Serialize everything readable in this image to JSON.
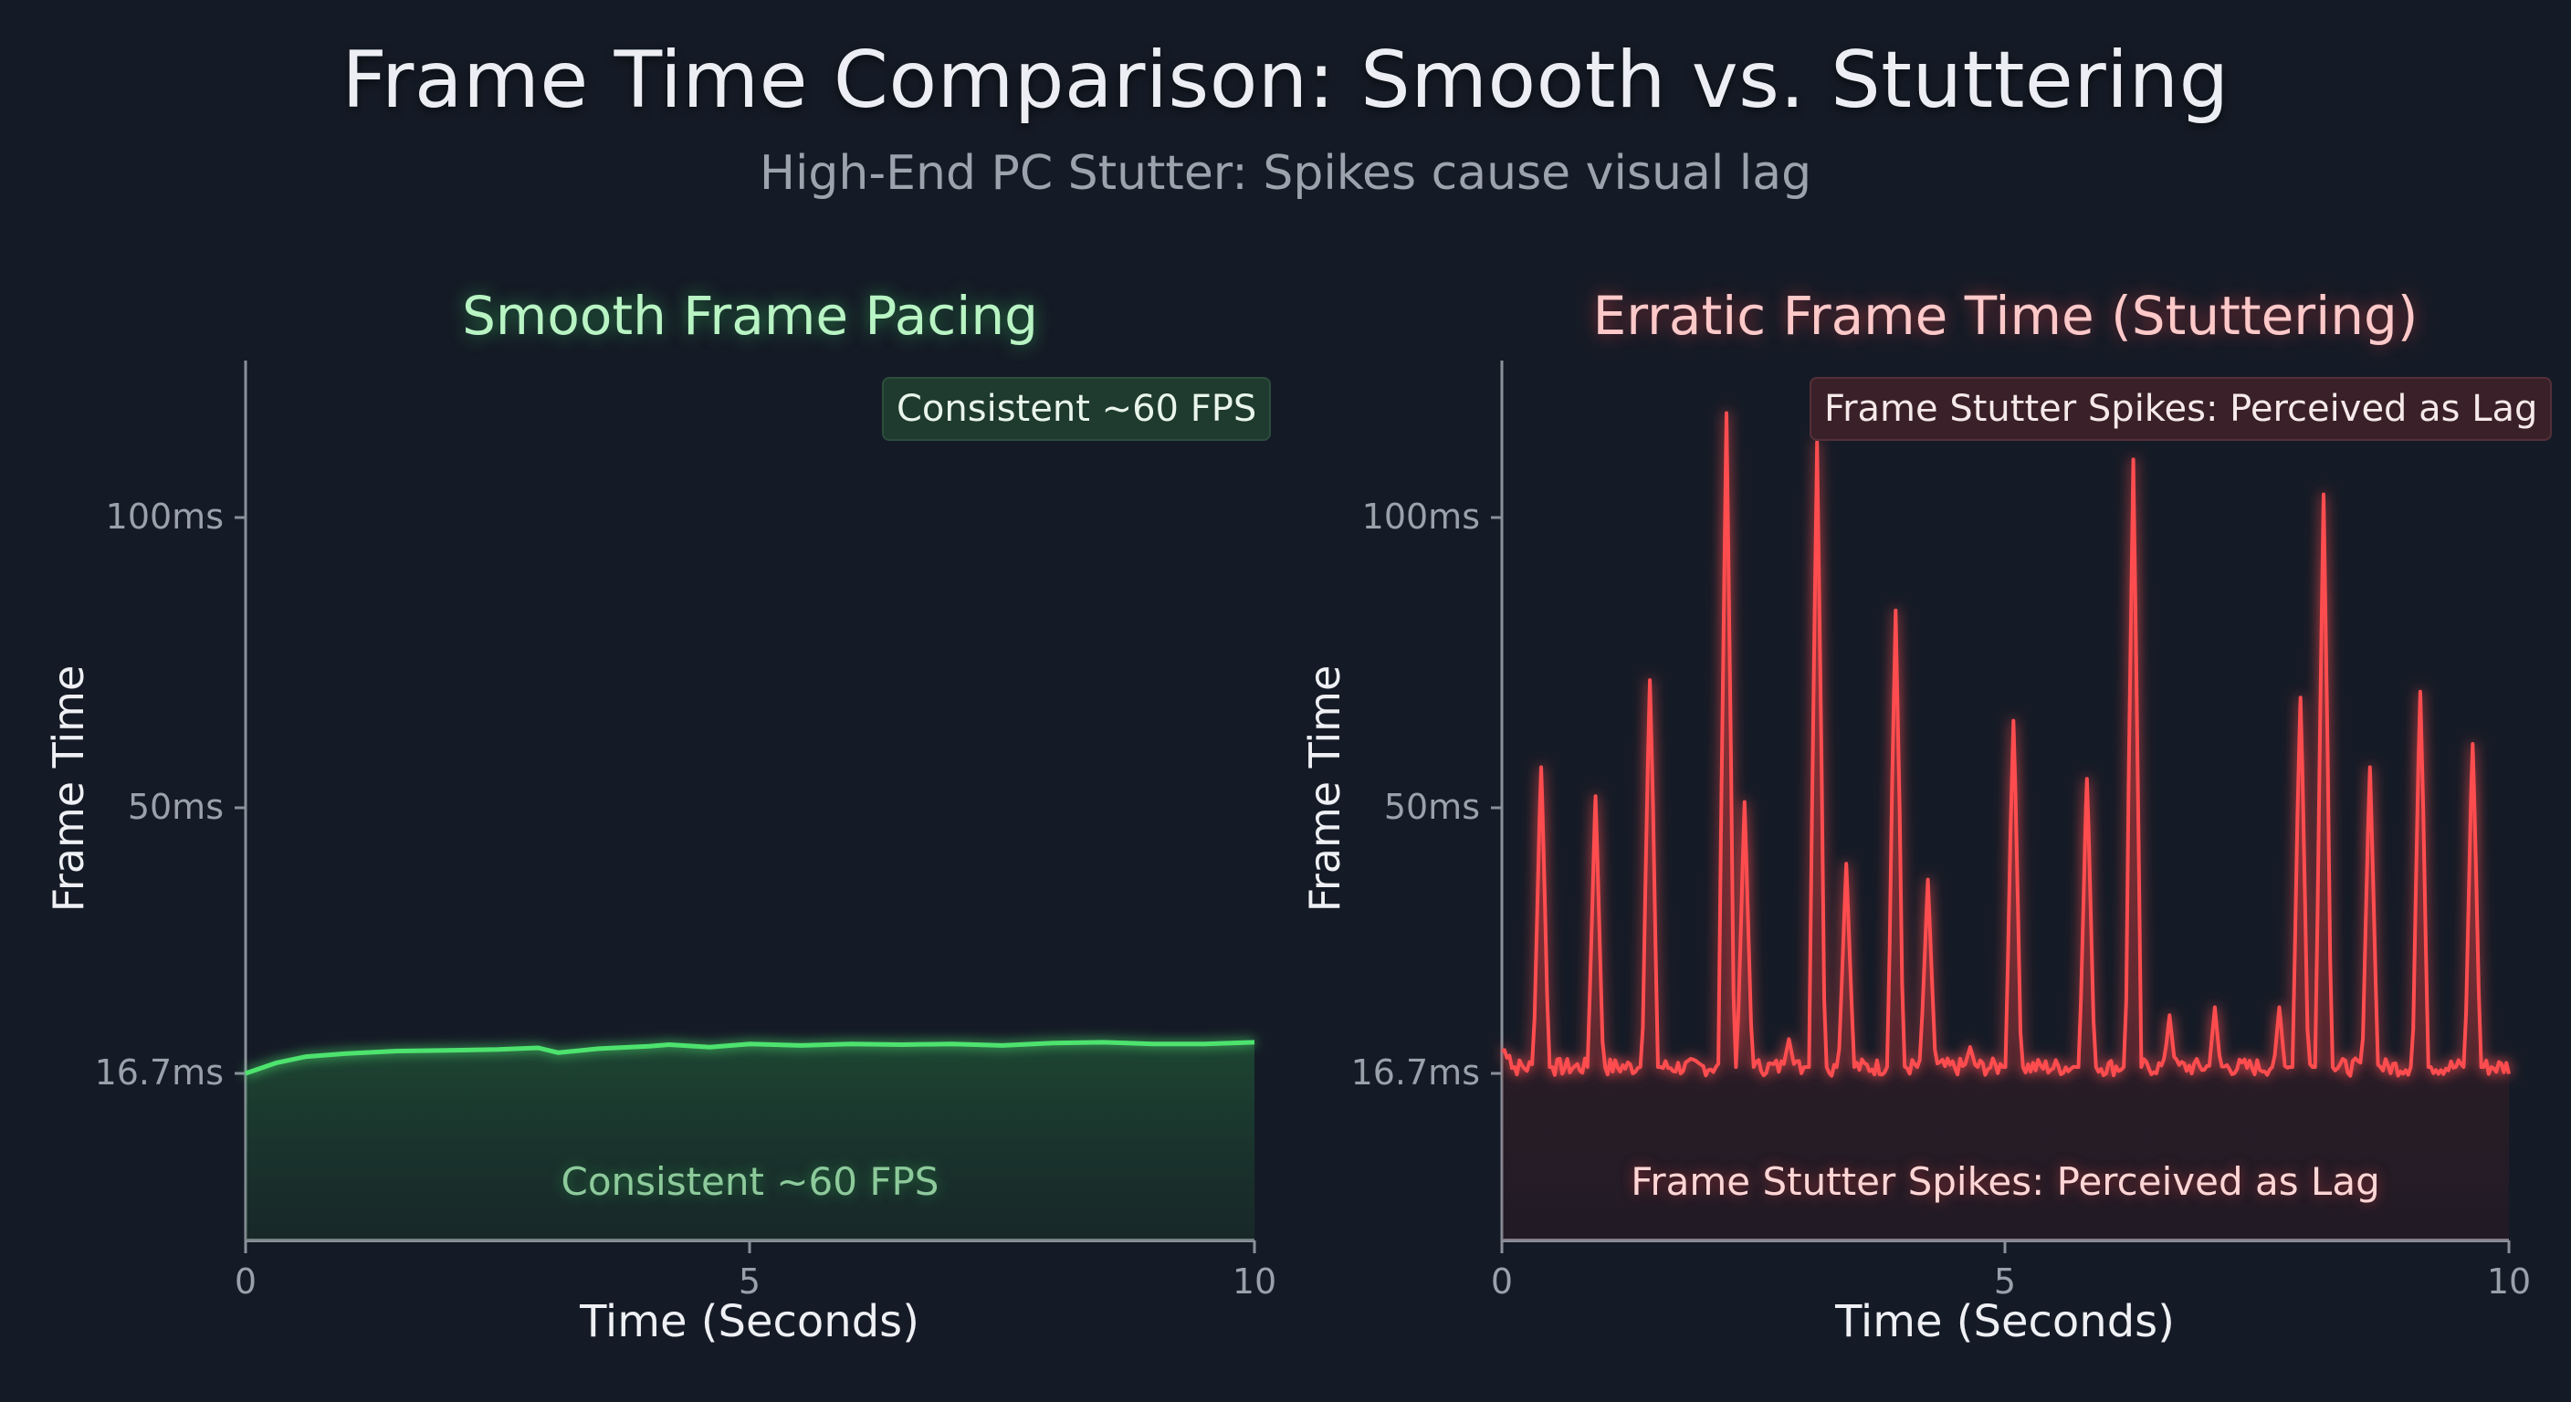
{
  "header": {
    "title": "Frame Time Comparison: Smooth vs. Stuttering",
    "subtitle": "High-End PC Stutter: Spikes cause visual lag"
  },
  "colors": {
    "background": "#151b26",
    "smooth_line": "#4ee36e",
    "stutter_line": "#ff4d4f",
    "axis": "#8b919b"
  },
  "chart_data": [
    {
      "type": "area",
      "title": "Smooth Frame Pacing",
      "xlabel": "Time (Seconds)",
      "ylabel": "Frame Time",
      "x_ticks": [
        0,
        5,
        10
      ],
      "y_ticks": [
        16.7,
        50,
        100
      ],
      "y_tick_labels": [
        "16.7ms",
        "50ms",
        "100ms"
      ],
      "xlim": [
        0,
        10
      ],
      "grid": false,
      "annotation_box": "Consistent ~60 FPS",
      "annotation_inner": "Consistent ~60 FPS",
      "series": [
        {
          "name": "Smooth",
          "color": "#4ee36e",
          "x": [
            0,
            0.3,
            0.6,
            1.0,
            1.5,
            2.0,
            2.5,
            2.9,
            3.1,
            3.5,
            4.0,
            4.2,
            4.6,
            5.0,
            5.5,
            6.0,
            6.5,
            7.0,
            7.5,
            8.0,
            8.5,
            9.0,
            9.5,
            10.0
          ],
          "y": [
            16.7,
            18.0,
            18.8,
            19.2,
            19.5,
            19.6,
            19.7,
            19.9,
            19.3,
            19.8,
            20.1,
            20.3,
            20.0,
            20.4,
            20.2,
            20.4,
            20.3,
            20.4,
            20.2,
            20.5,
            20.6,
            20.4,
            20.4,
            20.6
          ]
        }
      ]
    },
    {
      "type": "area",
      "title": "Erratic Frame Time (Stuttering)",
      "xlabel": "Time (Seconds)",
      "ylabel": "Frame Time",
      "x_ticks": [
        0,
        5,
        10
      ],
      "y_ticks": [
        16.7,
        50,
        100
      ],
      "y_tick_labels": [
        "16.7ms",
        "50ms",
        "100ms"
      ],
      "xlim": [
        0,
        10
      ],
      "grid": false,
      "annotation_box": "Frame Stutter Spikes: Perceived as Lag",
      "annotation_inner": "Frame Stutter Spikes: Perceived as Lag",
      "series": [
        {
          "name": "Stuttering",
          "color": "#ff4d4f",
          "baseline": 17.5,
          "spikes": [
            {
              "t": 0.39,
              "ms": 57
            },
            {
              "t": 0.93,
              "ms": 52
            },
            {
              "t": 1.47,
              "ms": 72
            },
            {
              "t": 2.23,
              "ms": 118
            },
            {
              "t": 2.41,
              "ms": 51
            },
            {
              "t": 2.85,
              "ms": 21
            },
            {
              "t": 3.13,
              "ms": 113
            },
            {
              "t": 3.42,
              "ms": 43
            },
            {
              "t": 3.91,
              "ms": 84
            },
            {
              "t": 4.23,
              "ms": 41
            },
            {
              "t": 4.65,
              "ms": 20
            },
            {
              "t": 5.08,
              "ms": 65
            },
            {
              "t": 5.81,
              "ms": 55
            },
            {
              "t": 6.27,
              "ms": 110
            },
            {
              "t": 6.63,
              "ms": 24
            },
            {
              "t": 7.08,
              "ms": 25
            },
            {
              "t": 7.72,
              "ms": 25
            },
            {
              "t": 7.93,
              "ms": 69
            },
            {
              "t": 8.16,
              "ms": 104
            },
            {
              "t": 8.62,
              "ms": 57
            },
            {
              "t": 9.12,
              "ms": 70
            },
            {
              "t": 9.64,
              "ms": 61
            }
          ]
        }
      ]
    }
  ]
}
